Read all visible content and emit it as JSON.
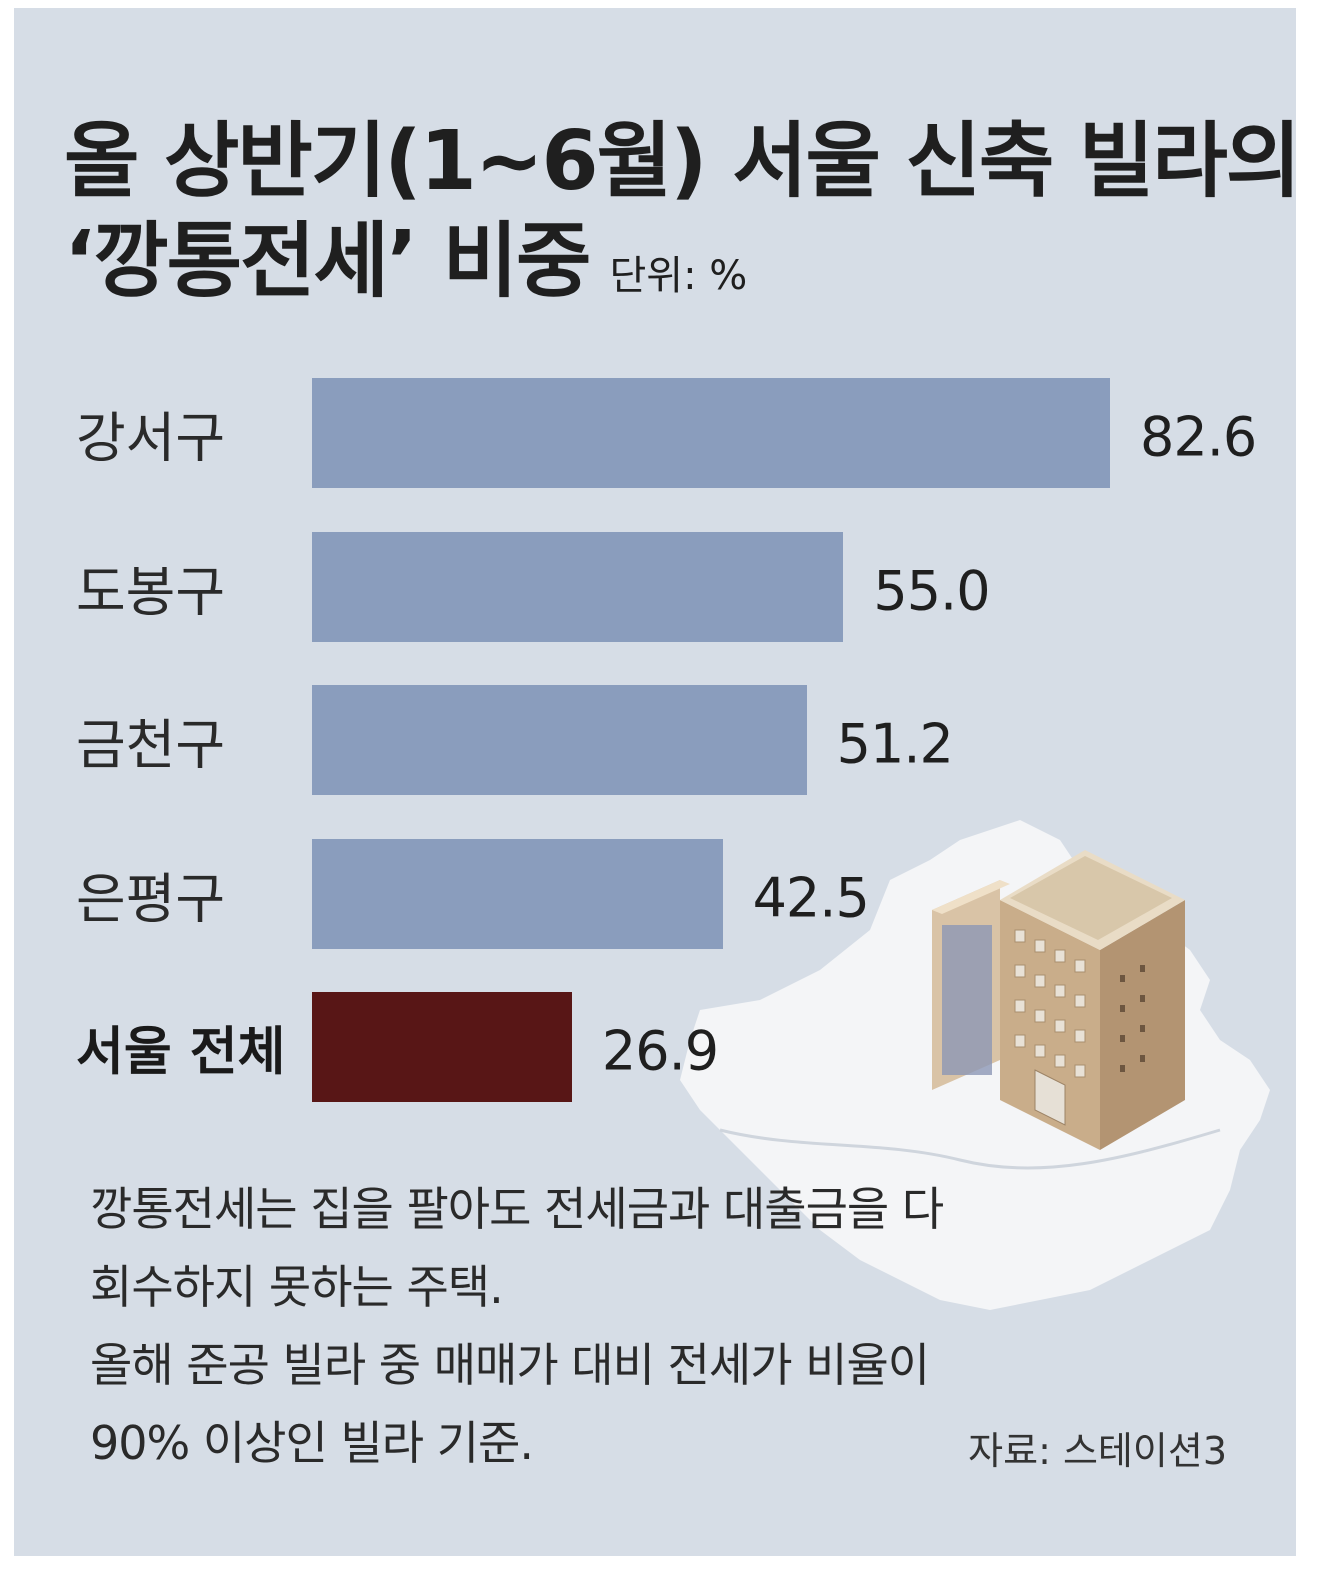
{
  "colors": {
    "background": "#d6dde6",
    "bar": "#8a9dbd",
    "highlight_bar": "#581616",
    "text": "#1f1f1f"
  },
  "chart_data": {
    "type": "bar",
    "orientation": "horizontal",
    "title_line1": "올 상반기(1~6월) 서울 신축 빌라의",
    "title_line2": "‘깡통전세’ 비중",
    "unit": "단위: %",
    "categories": [
      "강서구",
      "도봉구",
      "금천구",
      "은평구",
      "서울 전체"
    ],
    "values": [
      82.6,
      55.0,
      51.2,
      42.5,
      26.9
    ],
    "value_labels": [
      "82.6",
      "55.0",
      "51.2",
      "42.5",
      "26.9"
    ],
    "highlight_category": "서울 전체",
    "xlim": [
      0,
      82.6
    ],
    "grid": false
  },
  "notes": [
    "깡통전세는 집을 팔아도 전세금과 대출금을 다",
    "회수하지 못하는 주택.",
    "올해 준공 빌라 중 매매가 대비 전세가 비율이",
    "90% 이상인 빌라 기준."
  ],
  "source": "자료: 스테이션3",
  "illustration": {
    "icon": "building-on-seoul-map-icon"
  }
}
